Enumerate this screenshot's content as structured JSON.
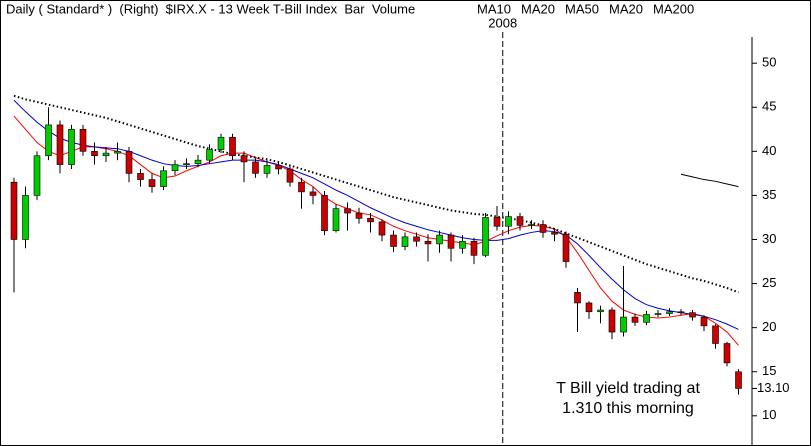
{
  "chart_data": {
    "type": "candlestick",
    "title": "Daily ( Standard* )  (Right)  $IRX.X - 13 Week T-Bill Index  Bar  Volume",
    "extra_labels": [
      {
        "text": "MA20",
        "color": "#000000"
      }
    ],
    "categories": [
      null,
      null,
      null,
      null,
      null,
      null,
      null,
      null,
      null,
      null,
      null,
      null,
      null,
      null,
      null,
      null,
      null,
      null,
      null,
      null,
      null,
      null,
      null,
      null,
      null,
      null,
      null,
      null,
      null,
      null,
      null,
      null,
      null,
      null,
      null,
      null,
      null,
      null,
      null,
      null,
      null,
      null,
      null,
      "2008",
      null,
      null,
      null,
      null,
      null,
      null,
      null,
      null,
      null,
      null,
      null,
      null,
      null,
      null,
      null,
      null,
      null,
      null,
      null,
      null
    ],
    "open": [
      36.5,
      30,
      35,
      39.5,
      43,
      38.5,
      42.5,
      40,
      39.5,
      39.8,
      40,
      37.5,
      36.8,
      36,
      37.8,
      38.5,
      38.6,
      39,
      40.2,
      41.6,
      39.5,
      38.8,
      37.5,
      38.4,
      38,
      36.5,
      35.4,
      35,
      31,
      33.5,
      33,
      32.4,
      32,
      30.5,
      29.2,
      30.3,
      29.8,
      29.5,
      30.5,
      29,
      29.8,
      28.2,
      32.5,
      31.5,
      32.6,
      31.6,
      31.7,
      30.8,
      30.6,
      24,
      22.8,
      21.8,
      22,
      19.5,
      21.2,
      20.6,
      21.5,
      21.6,
      21.8,
      21.7,
      21.2,
      20.2,
      18.2,
      15
    ],
    "high": [
      37,
      36,
      40,
      45,
      43.5,
      43,
      43,
      41,
      40.5,
      41,
      40.5,
      38,
      37.5,
      38.3,
      39,
      39.2,
      39.6,
      40.8,
      42,
      42,
      40,
      39.2,
      39,
      38.8,
      38.4,
      37,
      36,
      35.5,
      34,
      34.2,
      33.6,
      33,
      32.3,
      31,
      30.8,
      30.8,
      30.6,
      31,
      30.8,
      30.5,
      30.2,
      33,
      33.8,
      33.2,
      33,
      32.2,
      32.2,
      31.3,
      30.9,
      24.5,
      23,
      22.5,
      22.3,
      27,
      21.6,
      21.9,
      22,
      22.2,
      22.1,
      22,
      21.4,
      20.4,
      18.4,
      15.3
    ],
    "low": [
      24,
      29,
      34.5,
      39,
      37.5,
      38,
      39.5,
      38.5,
      38.8,
      39,
      36.5,
      36,
      35.3,
      35.6,
      37.3,
      38,
      38.2,
      38.6,
      39.8,
      39,
      36.5,
      37,
      37,
      37.4,
      36,
      33.5,
      34,
      30.5,
      30.8,
      31,
      31.8,
      30.8,
      29.8,
      28.6,
      28.8,
      29.2,
      27.5,
      28.5,
      27.5,
      28.4,
      27.2,
      28,
      31,
      30.6,
      31,
      31.2,
      30.2,
      29.8,
      26.8,
      19.5,
      21,
      20.5,
      18.7,
      19,
      20.2,
      20.3,
      21.2,
      21.3,
      21.4,
      20.8,
      19.6,
      17.6,
      15.6,
      12.4
    ],
    "close": [
      30,
      35,
      39.5,
      43,
      38.5,
      42.5,
      40,
      39.5,
      39.8,
      40,
      37.5,
      36.8,
      36,
      37.8,
      38.5,
      38.6,
      39,
      40.2,
      41.6,
      39.5,
      38.8,
      37.5,
      38.4,
      38,
      36.5,
      35.4,
      35,
      31,
      33.5,
      33,
      32.4,
      32,
      30.5,
      29.2,
      30.3,
      29.8,
      29.5,
      30.5,
      29,
      29.8,
      28.2,
      32.5,
      31.5,
      32.6,
      31.6,
      31.7,
      30.8,
      30.6,
      27.5,
      22.8,
      21.8,
      22,
      19.5,
      21.2,
      20.6,
      21.5,
      21.6,
      21.8,
      21.7,
      21.2,
      20.2,
      18.2,
      16,
      13.1
    ],
    "up_color": "#00cc00",
    "down_color": "#cc0000",
    "last_value_label": "13.10",
    "series": [
      {
        "name": "MA10",
        "color": "#ff0000",
        "style": "solid",
        "values": [
          44,
          42.5,
          41,
          40,
          39.5,
          40,
          40.5,
          40.5,
          40.3,
          40,
          39.5,
          38.5,
          37.5,
          37,
          37.2,
          37.8,
          38.3,
          38.8,
          39.5,
          39.8,
          39.8,
          39.3,
          38.8,
          38.4,
          37.8,
          36.8,
          36,
          34.8,
          34,
          33.5,
          33,
          32.8,
          32.2,
          31.5,
          31,
          30.6,
          30.2,
          30,
          29.8,
          29.6,
          29.4,
          29.8,
          30.4,
          31,
          31.4,
          31.6,
          31.5,
          31.2,
          30.3,
          28.5,
          26.5,
          24.5,
          23,
          22,
          21.5,
          21.2,
          21.1,
          21.2,
          21.4,
          21.6,
          21.3,
          20.5,
          19.5,
          18
        ]
      },
      {
        "name": "MA20",
        "color": "#0000cc",
        "style": "solid",
        "values": [
          45.8,
          44.5,
          43.3,
          42.3,
          41.5,
          41,
          40.7,
          40.5,
          40.4,
          40.3,
          40,
          39.5,
          39,
          38.6,
          38.4,
          38.3,
          38.4,
          38.6,
          38.8,
          39,
          39,
          39,
          38.8,
          38.5,
          38,
          37.5,
          37,
          36.3,
          35.6,
          35,
          34.3,
          33.6,
          33,
          32.4,
          31.9,
          31.5,
          31.1,
          30.8,
          30.5,
          30.2,
          30,
          29.9,
          29.9,
          30.1,
          30.5,
          30.8,
          31,
          30.9,
          30.5,
          29.5,
          28.2,
          26.8,
          25.5,
          24.3,
          23.3,
          22.6,
          22.2,
          21.9,
          21.7,
          21.5,
          21.3,
          20.9,
          20.4,
          19.8
        ]
      },
      {
        "name": "MA50",
        "color": "#000000",
        "style": "dotted",
        "values": [
          46.3,
          45.9,
          45.6,
          45.3,
          45,
          44.7,
          44.4,
          44.1,
          43.8,
          43.4,
          43,
          42.6,
          42.2,
          41.8,
          41.4,
          41,
          40.6,
          40.3,
          40,
          39.7,
          39.5,
          39.3,
          39.1,
          38.8,
          38.4,
          38,
          37.6,
          37.2,
          36.8,
          36.4,
          36,
          35.6,
          35.2,
          34.8,
          34.5,
          34.2,
          33.9,
          33.6,
          33.3,
          33.1,
          32.9,
          32.8,
          32.6,
          32.4,
          32.2,
          31.9,
          31.6,
          31.2,
          30.7,
          30.2,
          29.7,
          29.2,
          28.7,
          28.2,
          27.7,
          27.2,
          26.8,
          26.4,
          26,
          25.6,
          25.3,
          24.9,
          24.5,
          24
        ]
      },
      {
        "name": "MA200",
        "color": "#000000",
        "style": "solid",
        "values": [
          null,
          null,
          null,
          null,
          null,
          null,
          null,
          null,
          null,
          null,
          null,
          null,
          null,
          null,
          null,
          null,
          null,
          null,
          null,
          null,
          null,
          null,
          null,
          null,
          null,
          null,
          null,
          null,
          null,
          null,
          null,
          null,
          null,
          null,
          null,
          null,
          null,
          null,
          null,
          null,
          null,
          null,
          null,
          null,
          null,
          null,
          null,
          null,
          null,
          null,
          null,
          null,
          null,
          null,
          null,
          null,
          null,
          null,
          37.4,
          37.1,
          36.8,
          36.6,
          36.3,
          36
        ]
      }
    ],
    "ylim": [
      6.8,
      54.9
    ],
    "yticks": [
      10,
      15,
      20,
      25,
      30,
      35,
      40,
      45,
      50
    ],
    "annotation": [
      "T Bill yield trading at",
      "1.310 this morning"
    ],
    "annotation_color": "#ff0000"
  }
}
